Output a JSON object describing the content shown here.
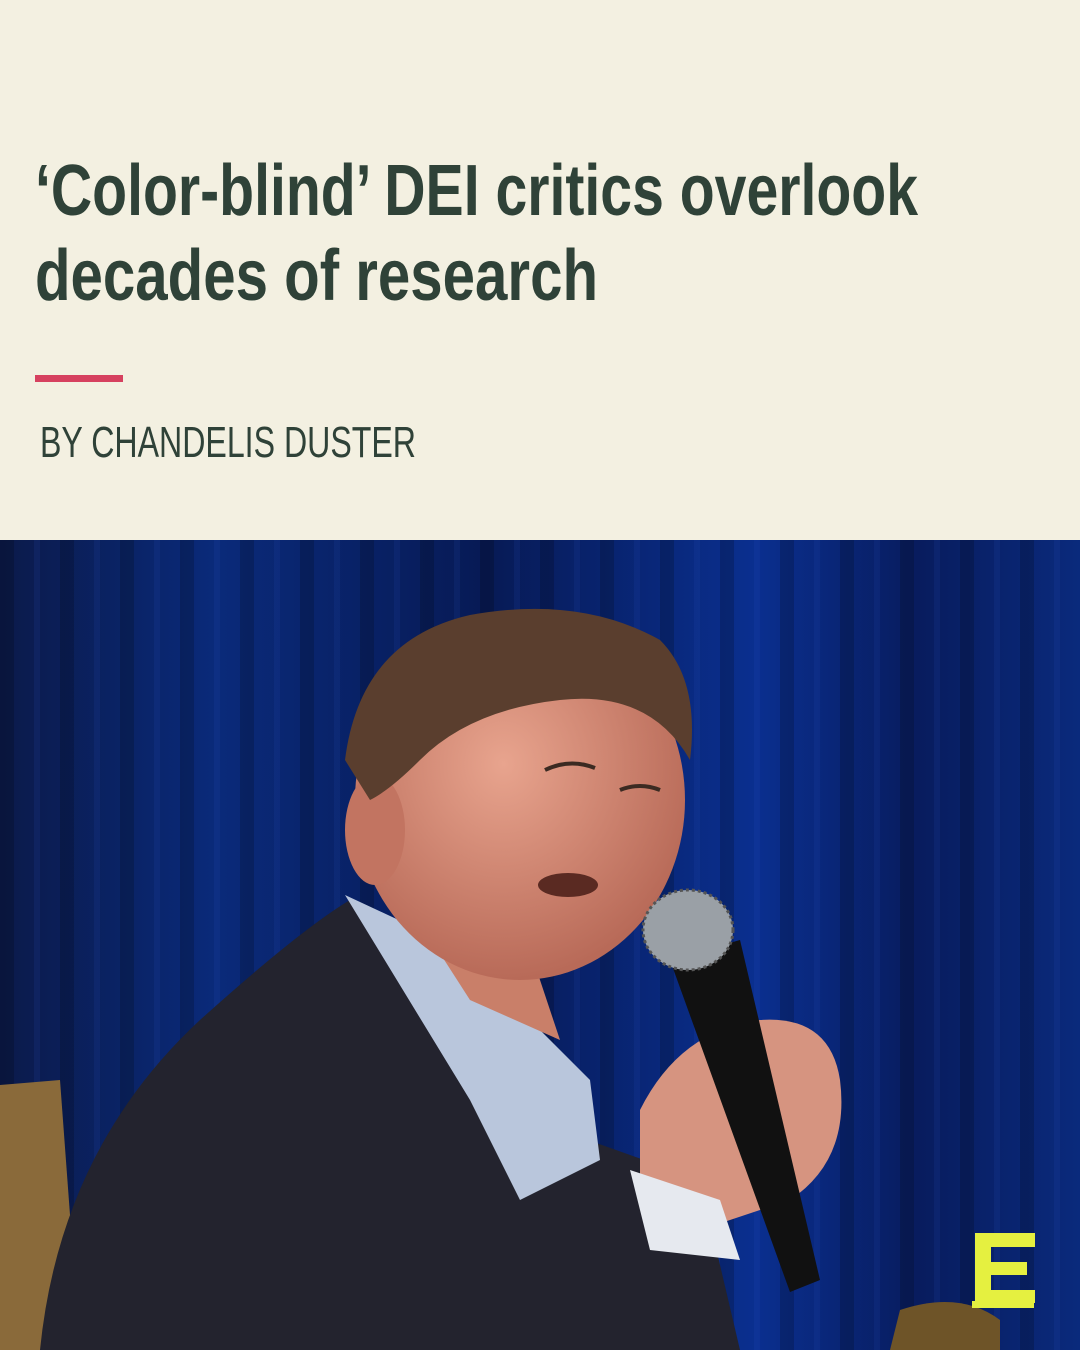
{
  "headline": {
    "lines": [
      "‘Color-blind’ DEI critics overlook",
      "decades of research"
    ]
  },
  "byline": "BY CHANDELIS DUSTER"
}
